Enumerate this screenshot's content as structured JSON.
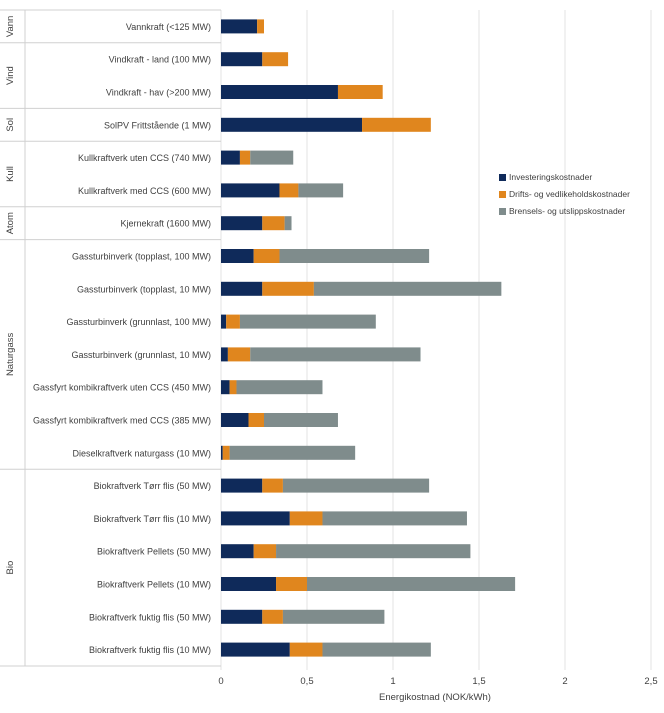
{
  "chart_data": {
    "type": "bar",
    "orientation": "horizontal",
    "stacked": true,
    "title": "",
    "xlabel": "Energikostnad (NOK/kWh)",
    "ylabel": "",
    "xlim": [
      0,
      2.5
    ],
    "x_ticks": [
      "0",
      "0,5",
      "1",
      "1,5",
      "2",
      "2,5"
    ],
    "grid": true,
    "legend_position": "right",
    "categories": [
      "Vannkraft (<125 MW)",
      "Vindkraft - land (100 MW)",
      "Vindkraft - hav (>200 MW)",
      "SolPV Frittstående (1 MW)",
      "Kullkraftverk uten CCS (740 MW)",
      "Kullkraftverk med CCS (600 MW)",
      "Kjernekraft (1600 MW)",
      "Gassturbinverk (topplast, 100 MW)",
      "Gassturbinverk (topplast, 10 MW)",
      "Gassturbinverk (grunnlast, 100 MW)",
      "Gassturbinverk (grunnlast, 10 MW)",
      "Gassfyrt kombikraftverk uten CCS (450 MW)",
      "Gassfyrt kombikraftverk med CCS (385 MW)",
      "Dieselkraftverk naturgass (10 MW)",
      "Biokraftverk Tørr flis (50 MW)",
      "Biokraftverk Tørr flis (10 MW)",
      "Biokraftverk Pellets (50 MW)",
      "Biokraftverk Pellets (10 MW)",
      "Biokraftverk fuktig flis (50 MW)",
      "Biokraftverk fuktig flis (10 MW)"
    ],
    "groups": [
      {
        "label": "Vann",
        "start": 0,
        "count": 1
      },
      {
        "label": "Vind",
        "start": 1,
        "count": 2
      },
      {
        "label": "Sol",
        "start": 3,
        "count": 1
      },
      {
        "label": "Kull",
        "start": 4,
        "count": 2
      },
      {
        "label": "Atom",
        "start": 6,
        "count": 1
      },
      {
        "label": "Naturgass",
        "start": 7,
        "count": 7
      },
      {
        "label": "Bio",
        "start": 14,
        "count": 6
      }
    ],
    "series": [
      {
        "name": "Investeringskostnader",
        "color": "#0f2a5a",
        "values": [
          0.21,
          0.24,
          0.68,
          0.82,
          0.11,
          0.34,
          0.24,
          0.19,
          0.24,
          0.03,
          0.04,
          0.05,
          0.16,
          0.01,
          0.24,
          0.4,
          0.19,
          0.32,
          0.24,
          0.4
        ]
      },
      {
        "name": "Drifts- og vedlikeholdskostnader",
        "color": "#e0861e",
        "values": [
          0.04,
          0.15,
          0.26,
          0.4,
          0.06,
          0.11,
          0.13,
          0.15,
          0.3,
          0.08,
          0.13,
          0.04,
          0.09,
          0.04,
          0.12,
          0.19,
          0.13,
          0.18,
          0.12,
          0.19
        ]
      },
      {
        "name": "Brensels- og utslippskostnader",
        "color": "#7f8c8c",
        "values": [
          0,
          0,
          0,
          0,
          0.25,
          0.26,
          0.04,
          0.87,
          1.09,
          0.79,
          0.99,
          0.5,
          0.43,
          0.73,
          0.85,
          0.84,
          1.13,
          1.21,
          0.59,
          0.63
        ]
      }
    ]
  }
}
